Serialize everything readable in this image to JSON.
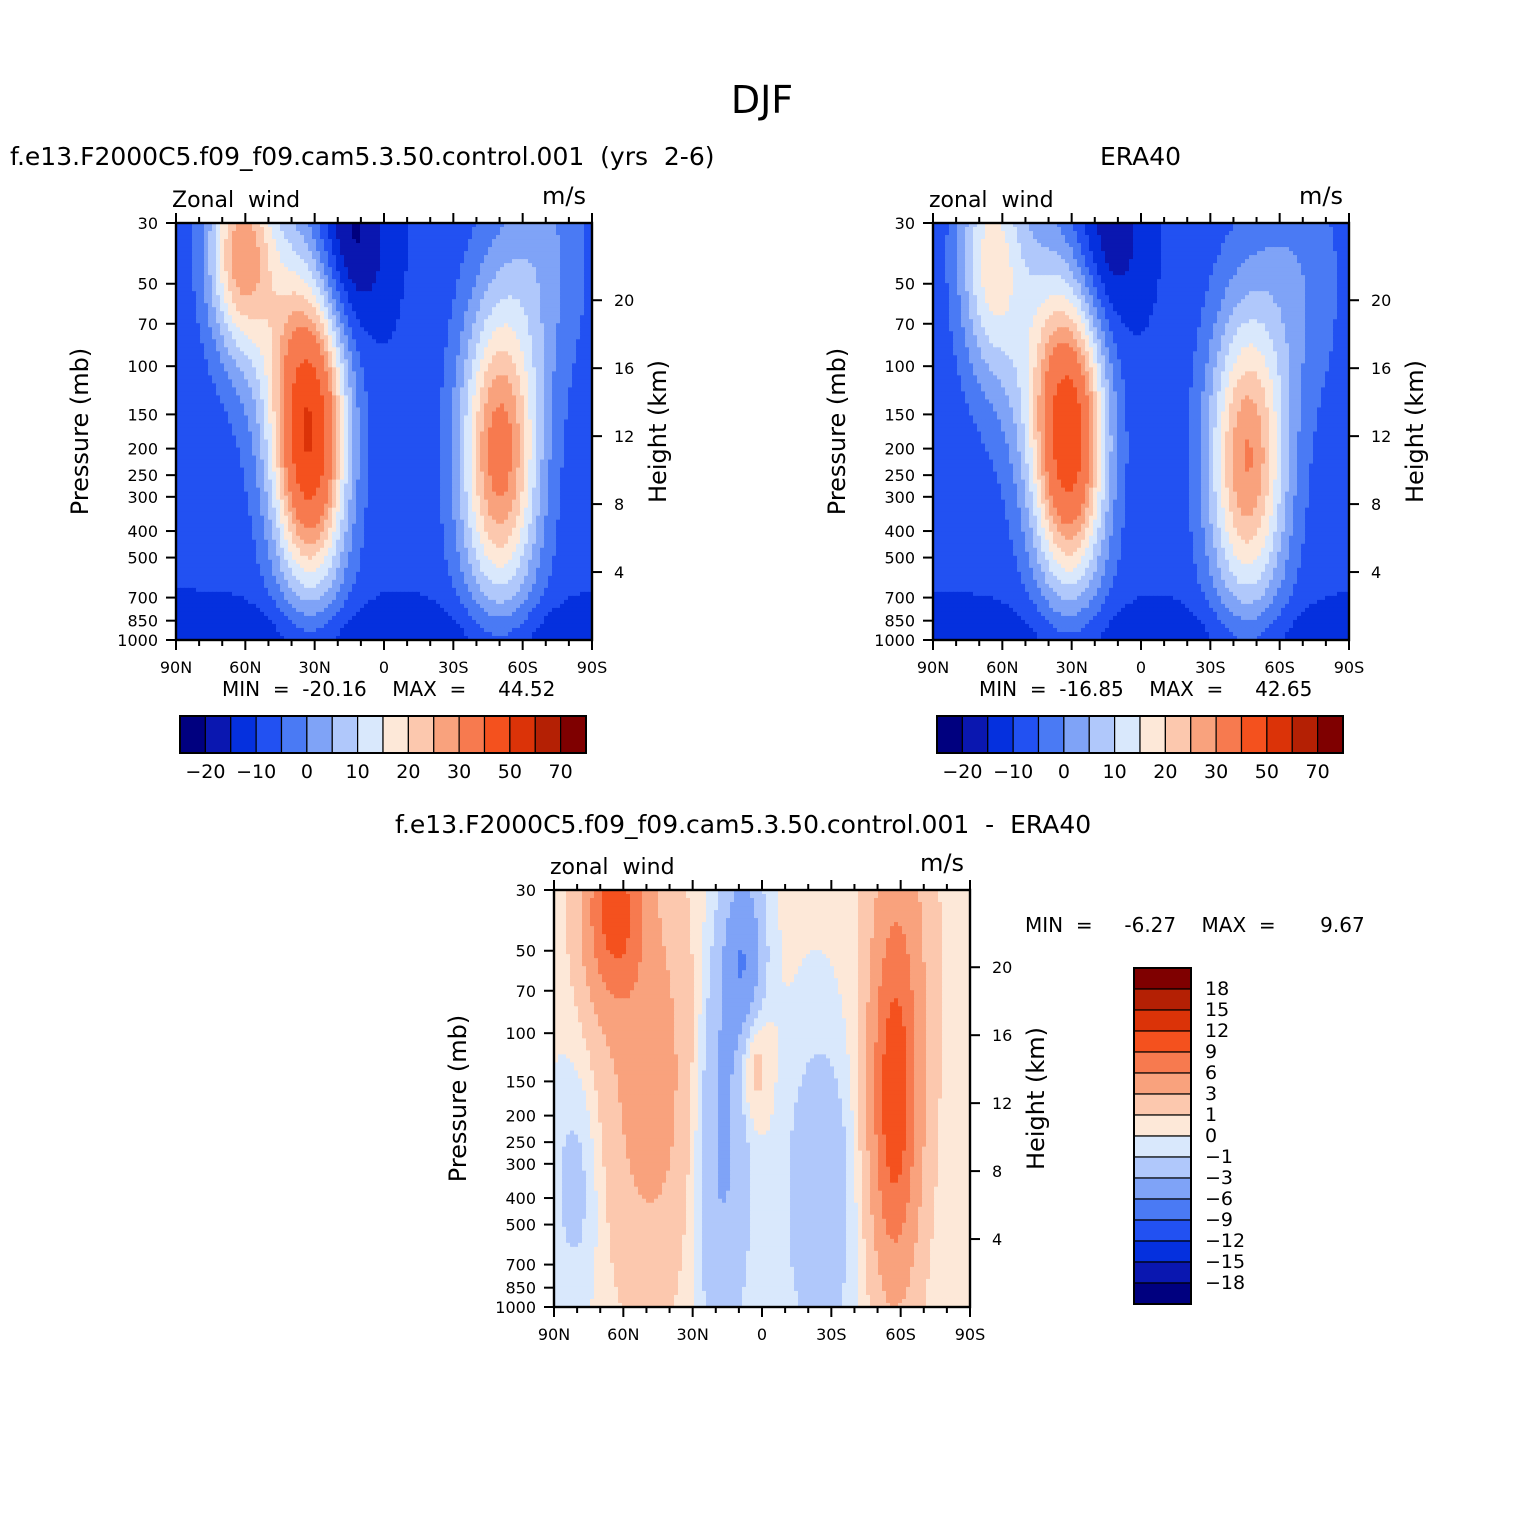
{
  "title": "DJF",
  "colors": {
    "wind_scale": [
      "#00007f",
      "#0a17b0",
      "#0530de",
      "#2251f2",
      "#4a7af4",
      "#7fa3f7",
      "#b0c8fb",
      "#d9e8fc",
      "#fde8d8",
      "#fcc8ae",
      "#f9a27d",
      "#f77a4f",
      "#f4511e",
      "#db3308",
      "#b42004",
      "#7f0000"
    ],
    "diff_scale": [
      "#00007f",
      "#0a17b0",
      "#0530de",
      "#2251f2",
      "#4a7af4",
      "#7fa3f7",
      "#b0c8fb",
      "#d9e8fc",
      "#fde8d8",
      "#fcc8ae",
      "#f9a27d",
      "#f77a4f",
      "#f4511e",
      "#db3308",
      "#b42004",
      "#7f0000"
    ]
  },
  "panels": [
    {
      "id": "model",
      "title": "f.e13.F2000C5.f09_f09.cam5.3.50.control.001  (yrs  2-6)",
      "left_label": "Zonal  wind",
      "right_label": "m/s",
      "stats": "MIN  =  -20.16    MAX  =     44.52"
    },
    {
      "id": "obs",
      "title": "ERA40",
      "left_label": "zonal  wind",
      "right_label": "m/s",
      "stats": "MIN  =  -16.85    MAX  =     42.65"
    },
    {
      "id": "diff",
      "title": "f.e13.F2000C5.f09_f09.cam5.3.50.control.001  -  ERA40",
      "left_label": "zonal  wind",
      "right_label": "m/s",
      "stats": "MIN  =     -6.27    MAX  =       9.67"
    }
  ],
  "chart_data": [
    {
      "type": "heatmap",
      "subtype": "filled-contour",
      "title": "f.e13.F2000C5.f09_f09.cam5.3.50.control.001  (yrs  2-6)",
      "ylabel": "Pressure  (mb)",
      "ylabel_right": "Height  (km)",
      "y_scale": "log",
      "y_ticks": [
        30,
        50,
        70,
        100,
        150,
        200,
        250,
        300,
        400,
        500,
        700,
        850,
        1000
      ],
      "y_right_ticks": [
        20,
        16,
        12,
        8,
        4
      ],
      "x_ticks": [
        "90N",
        "60N",
        "30N",
        "0",
        "30S",
        "60S",
        "90S"
      ],
      "xlim": [
        90,
        -90
      ],
      "ylim": [
        1000,
        30
      ],
      "contour_levels": [
        -25,
        -20,
        -15,
        -10,
        -5,
        0,
        5,
        10,
        15,
        20,
        25,
        30,
        40,
        50,
        60,
        70,
        80
      ],
      "colorbar_tick_labels": [
        "-20",
        "-10",
        "0",
        "10",
        "20",
        "30",
        "50",
        "70"
      ],
      "min": -20.16,
      "max": 44.52,
      "jets": [
        {
          "lat": 32,
          "pressure": 190,
          "peak": 44.52
        },
        {
          "lat": -50,
          "pressure": 210,
          "peak": 34
        },
        {
          "lat": 62,
          "pressure": 38,
          "peak": 28
        }
      ],
      "easterlies": {
        "lat": 15,
        "pressure": 35,
        "value": -20.16
      }
    },
    {
      "type": "heatmap",
      "subtype": "filled-contour",
      "title": "ERA40",
      "ylabel": "Pressure  (mb)",
      "ylabel_right": "Height  (km)",
      "y_scale": "log",
      "y_ticks": [
        30,
        50,
        70,
        100,
        150,
        200,
        250,
        300,
        400,
        500,
        700,
        850,
        1000
      ],
      "y_right_ticks": [
        20,
        16,
        12,
        8,
        4
      ],
      "x_ticks": [
        "90N",
        "60N",
        "30N",
        "0",
        "30S",
        "60S",
        "90S"
      ],
      "xlim": [
        90,
        -90
      ],
      "ylim": [
        1000,
        30
      ],
      "contour_levels": [
        -25,
        -20,
        -15,
        -10,
        -5,
        0,
        5,
        10,
        15,
        20,
        25,
        30,
        40,
        50,
        60,
        70,
        80
      ],
      "colorbar_tick_labels": [
        "-20",
        "-10",
        "0",
        "10",
        "20",
        "30",
        "50",
        "70"
      ],
      "min": -16.85,
      "max": 42.65,
      "jets": [
        {
          "lat": 31,
          "pressure": 190,
          "peak": 42.65
        },
        {
          "lat": -46,
          "pressure": 220,
          "peak": 31
        },
        {
          "lat": 65,
          "pressure": 40,
          "peak": 17
        }
      ],
      "easterlies": {
        "lat": 15,
        "pressure": 35,
        "value": -16.85
      }
    },
    {
      "type": "heatmap",
      "subtype": "filled-contour",
      "title": "f.e13.F2000C5.f09_f09.cam5.3.50.control.001  -  ERA40",
      "ylabel": "Pressure  (mb)",
      "ylabel_right": "Height  (km)",
      "y_scale": "log",
      "y_ticks": [
        30,
        50,
        70,
        100,
        150,
        200,
        250,
        300,
        400,
        500,
        700,
        850,
        1000
      ],
      "y_right_ticks": [
        20,
        16,
        12,
        8,
        4
      ],
      "x_ticks": [
        "90N",
        "60N",
        "30N",
        "0",
        "30S",
        "60S",
        "90S"
      ],
      "xlim": [
        90,
        -90
      ],
      "ylim": [
        1000,
        30
      ],
      "contour_levels": [
        -21,
        -18,
        -15,
        -12,
        -9,
        -6,
        -3,
        -1,
        0,
        1,
        3,
        6,
        9,
        12,
        15,
        18,
        21
      ],
      "colorbar_tick_labels": [
        "18",
        "15",
        "12",
        "9",
        "6",
        "3",
        "1",
        "0",
        "-1",
        "-3",
        "-6",
        "-9",
        "-12",
        "-15",
        "-18"
      ],
      "min": -6.27,
      "max": 9.67,
      "features": [
        {
          "lat": 64,
          "pressure": 35,
          "value": 9.67
        },
        {
          "lat": -57,
          "pressure": 190,
          "value": 9
        },
        {
          "lat": 5,
          "pressure": 120,
          "value": 4
        },
        {
          "lat": 8,
          "pressure": 60,
          "value": -6.27
        }
      ]
    }
  ]
}
